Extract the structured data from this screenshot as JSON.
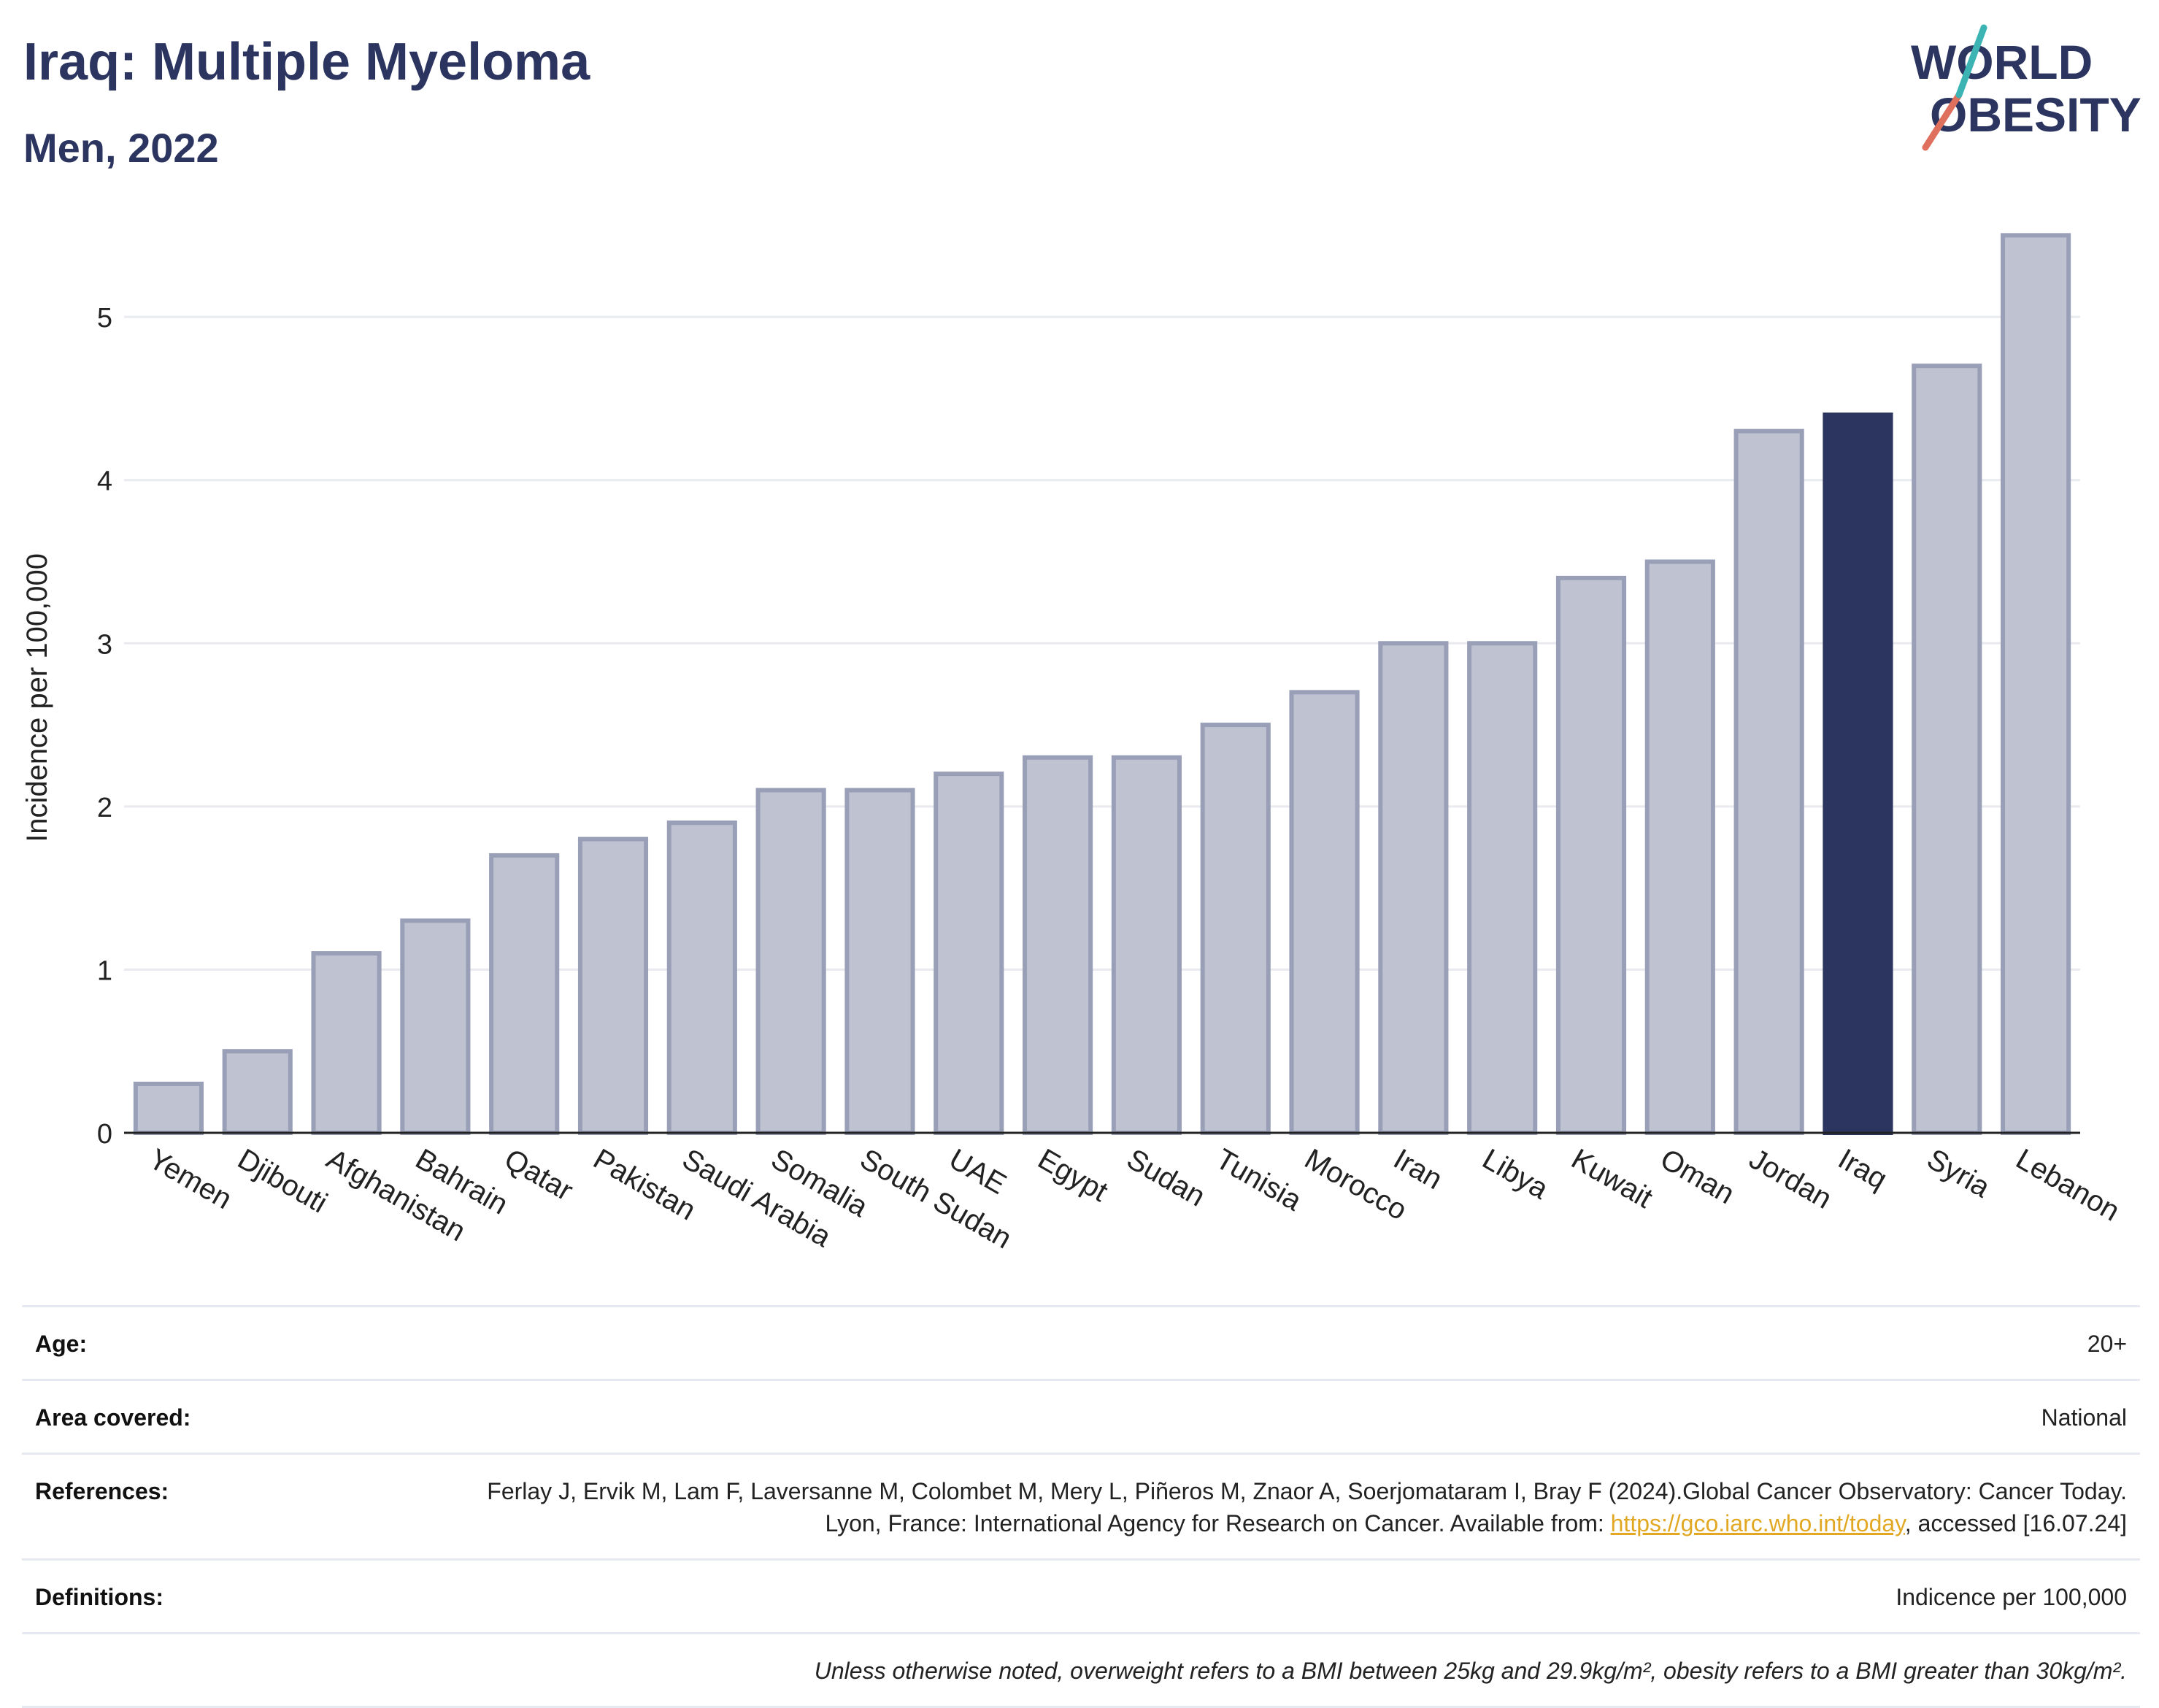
{
  "title": "Iraq: Multiple Myeloma",
  "subtitle": "Men, 2022",
  "logo": {
    "line1": "WORLD",
    "line2": "OBESITY",
    "colors": [
      "#2b3560",
      "#e0705e",
      "#3cb4b4"
    ]
  },
  "chart_data": {
    "type": "bar",
    "ylabel": "Incidence per 100,000",
    "xlabel": "",
    "ylim": [
      0,
      5.6
    ],
    "yticks": [
      0,
      1,
      2,
      3,
      4,
      5
    ],
    "grid": true,
    "categories": [
      "Yemen",
      "Djibouti",
      "Afghanistan",
      "Bahrain",
      "Qatar",
      "Pakistan",
      "Saudi Arabia",
      "Somalia",
      "South Sudan",
      "UAE",
      "Egypt",
      "Sudan",
      "Tunisia",
      "Morocco",
      "Iran",
      "Libya",
      "Kuwait",
      "Oman",
      "Jordan",
      "Iraq",
      "Syria",
      "Lebanon"
    ],
    "values": [
      0.3,
      0.5,
      1.1,
      1.3,
      1.7,
      1.8,
      1.9,
      2.1,
      2.1,
      2.2,
      2.3,
      2.3,
      2.5,
      2.7,
      3.0,
      3.0,
      3.4,
      3.5,
      4.3,
      4.4,
      4.7,
      5.5
    ],
    "highlight": "Iraq",
    "colors": {
      "bar": "#bfc2d0",
      "bar_border": "#9a9fb8",
      "highlight": "#2b3560"
    }
  },
  "info": {
    "age_label": "Age:",
    "age_value": "20+",
    "area_label": "Area covered:",
    "area_value": "National",
    "ref_label": "References:",
    "ref_text_1": "Ferlay J, Ervik M, Lam F, Laversanne M, Colombet M, Mery L, Piñeros M, Znaor A, Soerjomataram I, Bray F (2024).Global Cancer Observatory: Cancer Today. Lyon, France: International Agency for Research on Cancer. Available from: ",
    "ref_link": "https://gco.iarc.who.int/today",
    "ref_text_2": ", accessed [16.07.24]",
    "def_label": "Definitions:",
    "def_value": "Indicence per 100,000",
    "note": "Unless otherwise noted, overweight refers to a BMI between 25kg and 29.9kg/m², obesity refers to a BMI greater than 30kg/m²."
  }
}
